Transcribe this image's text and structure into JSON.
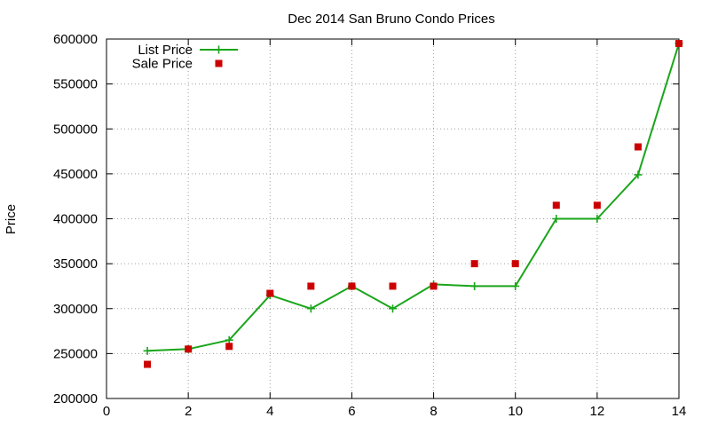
{
  "chart_data": {
    "type": "line",
    "title": "Dec 2014 San Bruno Condo Prices",
    "ylabel": "Price",
    "xlim": [
      0,
      14
    ],
    "ylim": [
      200000,
      600000
    ],
    "xticks": [
      0,
      2,
      4,
      6,
      8,
      10,
      12,
      14
    ],
    "yticks": [
      200000,
      250000,
      300000,
      350000,
      400000,
      450000,
      500000,
      550000,
      600000
    ],
    "grid": true,
    "legend": "top-left",
    "series": [
      {
        "name": "List Price",
        "type": "line",
        "color": "#1aa51a",
        "x": [
          1,
          2,
          3,
          4,
          5,
          6,
          7,
          8,
          9,
          10,
          11,
          12,
          13,
          14
        ],
        "y": [
          253000,
          255000,
          265000,
          315000,
          300000,
          325000,
          300000,
          327000,
          325000,
          325000,
          400000,
          400000,
          449000,
          595000
        ]
      },
      {
        "name": "Sale Price",
        "type": "scatter",
        "color": "#cc0000",
        "x": [
          1,
          2,
          3,
          4,
          5,
          6,
          7,
          8,
          9,
          10,
          11,
          12,
          13,
          14
        ],
        "y": [
          238000,
          255000,
          258000,
          317000,
          325000,
          325000,
          325000,
          325000,
          350000,
          350000,
          415000,
          415000,
          480000,
          595000
        ]
      }
    ]
  }
}
